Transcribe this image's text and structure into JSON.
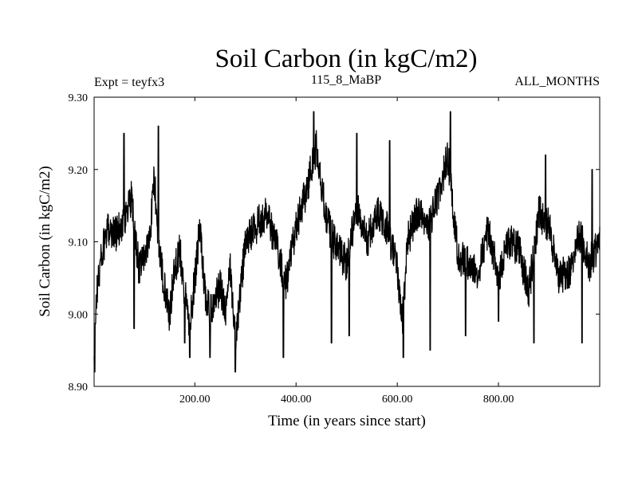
{
  "chart_data": {
    "type": "line",
    "title": "Soil Carbon (in kgC/m2)",
    "subtitle_left": "Expt = teyfx3",
    "subtitle_center": "115_8_MaBP",
    "subtitle_right": "ALL_MONTHS",
    "xlabel": "Time (in years since start)",
    "ylabel": "Soil Carbon (in kgC/m2)",
    "xlim": [
      1,
      1000
    ],
    "ylim": [
      8.9,
      9.3
    ],
    "xticks": [
      200,
      400,
      600,
      800
    ],
    "xtick_labels": [
      "200.00",
      "400.00",
      "600.00",
      "800.00"
    ],
    "yticks": [
      8.9,
      9.0,
      9.1,
      9.2,
      9.3
    ],
    "ytick_labels": [
      "8.90",
      "9.00",
      "9.10",
      "9.20",
      "9.30"
    ],
    "grid": false,
    "series": [
      {
        "name": "Soil Carbon",
        "color": "#000000",
        "noise_amplitude": 0.025,
        "anchors": {
          "x": [
            1,
            5,
            15,
            30,
            45,
            60,
            75,
            90,
            100,
            110,
            120,
            130,
            140,
            150,
            160,
            170,
            180,
            190,
            200,
            210,
            220,
            230,
            240,
            250,
            260,
            270,
            280,
            290,
            300,
            320,
            340,
            360,
            380,
            400,
            420,
            440,
            460,
            480,
            500,
            520,
            540,
            560,
            580,
            600,
            610,
            620,
            640,
            660,
            680,
            700,
            720,
            740,
            760,
            780,
            800,
            820,
            840,
            860,
            880,
            900,
            920,
            940,
            960,
            980,
            1000
          ],
          "y": [
            8.94,
            9.02,
            9.08,
            9.12,
            9.11,
            9.13,
            9.16,
            9.06,
            9.08,
            9.1,
            9.19,
            9.08,
            9.04,
            9.0,
            9.06,
            9.09,
            9.03,
            8.98,
            9.05,
            9.12,
            9.03,
            9.0,
            9.02,
            9.04,
            9.0,
            9.06,
            8.97,
            9.03,
            9.1,
            9.12,
            9.14,
            9.1,
            9.04,
            9.12,
            9.17,
            9.23,
            9.13,
            9.09,
            9.07,
            9.15,
            9.1,
            9.14,
            9.12,
            9.06,
            8.99,
            9.1,
            9.14,
            9.12,
            9.16,
            9.22,
            9.08,
            9.07,
            9.06,
            9.12,
            9.05,
            9.1,
            9.09,
            9.03,
            9.14,
            9.12,
            9.05,
            9.06,
            9.11,
            9.07,
            9.1
          ]
        },
        "dips": {
          "x": [
            2,
            80,
            180,
            190,
            230,
            280,
            375,
            470,
            505,
            612,
            665,
            735,
            800,
            870,
            965
          ],
          "y": [
            8.92,
            8.98,
            8.96,
            8.94,
            8.94,
            8.92,
            8.94,
            8.96,
            8.97,
            8.94,
            8.95,
            8.97,
            8.99,
            8.96,
            8.96
          ]
        },
        "peaks": {
          "x": [
            60,
            128,
            435,
            520,
            585,
            705,
            893,
            985
          ],
          "y": [
            9.25,
            9.26,
            9.28,
            9.25,
            9.24,
            9.28,
            9.22,
            9.2
          ]
        }
      }
    ]
  }
}
